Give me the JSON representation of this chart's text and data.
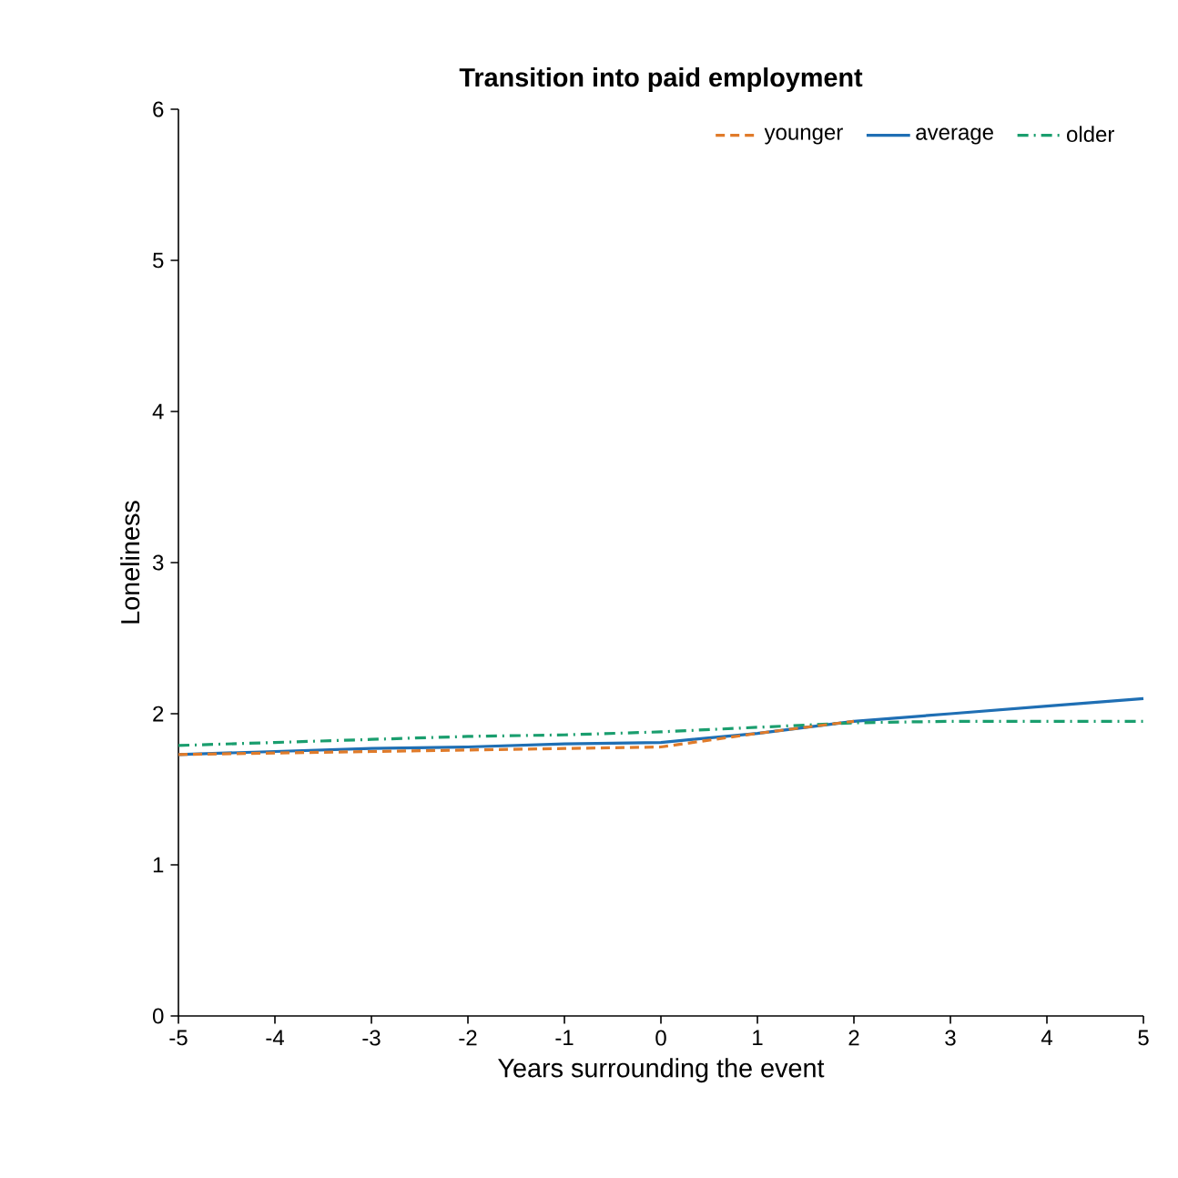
{
  "chart_data": {
    "type": "line",
    "title": "Transition into paid employment",
    "xlabel": "Years surrounding the event",
    "ylabel": "Loneliness",
    "x": [
      -5,
      -4,
      -3,
      -2,
      -1,
      0,
      1,
      2,
      3,
      4,
      5
    ],
    "series": [
      {
        "name": "younger",
        "color": "#e07b2a",
        "line_style": "dashed",
        "values": [
          1.73,
          1.74,
          1.75,
          1.76,
          1.77,
          1.78,
          1.87,
          1.95,
          null,
          null,
          null
        ]
      },
      {
        "name": "average",
        "color": "#1f6fb4",
        "line_style": "solid",
        "values": [
          1.73,
          1.75,
          1.77,
          1.78,
          1.8,
          1.81,
          1.87,
          1.95,
          2.0,
          2.05,
          2.1
        ]
      },
      {
        "name": "older",
        "color": "#1a9e6e",
        "line_style": "dashdot",
        "values": [
          1.79,
          1.81,
          1.83,
          1.85,
          1.86,
          1.88,
          1.91,
          1.94,
          1.95,
          1.95,
          1.95
        ]
      }
    ],
    "xlim": [
      -5,
      5
    ],
    "ylim": [
      0,
      6
    ],
    "xticks": [
      -5,
      -4,
      -3,
      -2,
      -1,
      0,
      1,
      2,
      3,
      4,
      5
    ],
    "yticks": [
      0,
      1,
      2,
      3,
      4,
      5,
      6
    ],
    "legend": "top right",
    "marker": "none",
    "grid": false
  }
}
